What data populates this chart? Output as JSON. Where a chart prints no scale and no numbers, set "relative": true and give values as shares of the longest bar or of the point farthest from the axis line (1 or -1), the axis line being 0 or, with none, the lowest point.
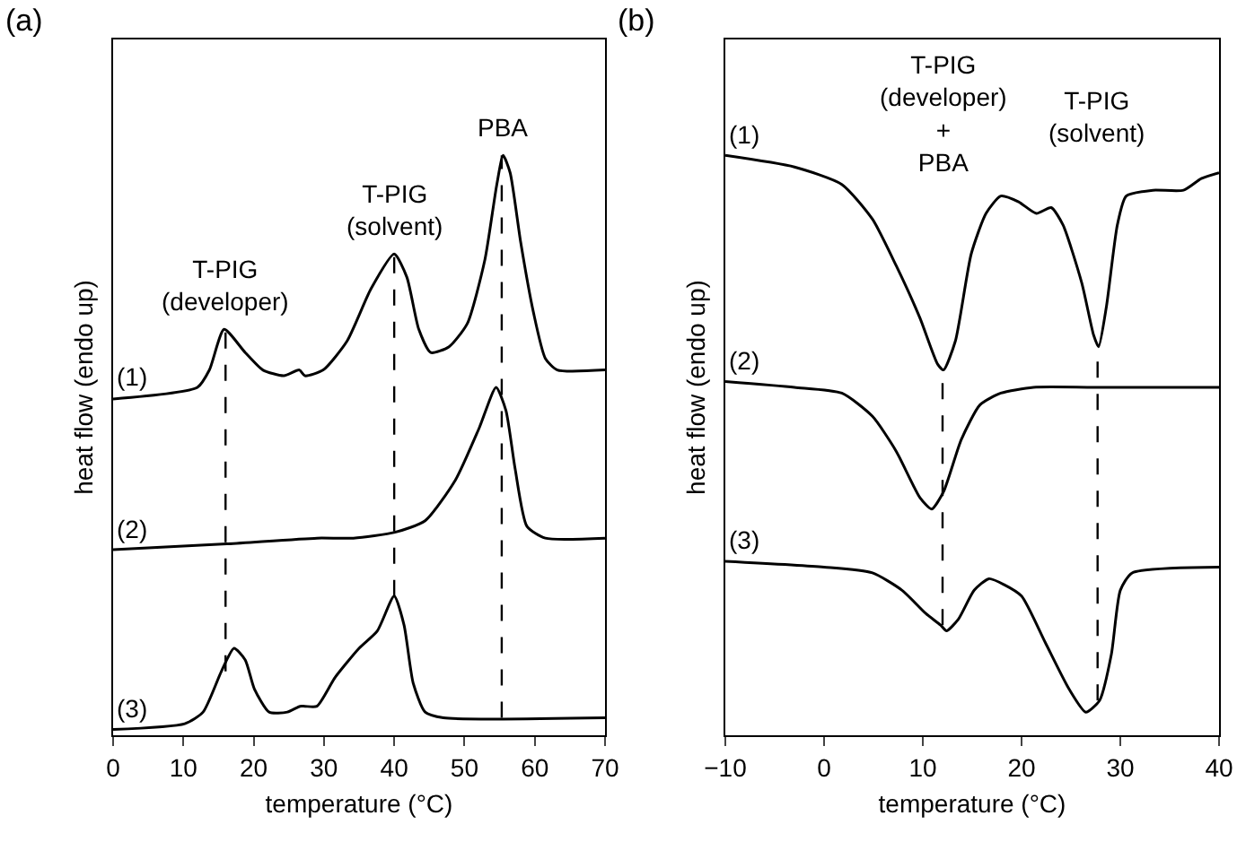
{
  "chart_data": [
    {
      "type": "line",
      "title": "(a)",
      "xlabel": "temperature (°C)",
      "ylabel": "heat flow (endo up)",
      "relative": true,
      "xlim": [
        0,
        70
      ],
      "xticks": [
        0,
        10,
        20,
        30,
        40,
        50,
        60,
        70
      ],
      "grid": false,
      "marker": "none",
      "line_style": "solid",
      "tick_labels": "x",
      "series": [
        {
          "name": "(1)",
          "color": "#000000",
          "x": [
            0,
            12,
            13.7,
            15.8,
            18.8,
            21.3,
            24.3,
            26.5,
            27.3,
            29.9,
            33.3,
            36.7,
            40,
            41.8,
            43.5,
            45.2,
            47.8,
            50.4,
            52.9,
            54.6,
            55.5,
            56.5,
            58,
            59.8,
            61.5,
            63.2,
            70
          ],
          "values": [
            0.58,
            0.6,
            0.63,
            0.7,
            0.66,
            0.63,
            0.62,
            0.63,
            0.62,
            0.63,
            0.68,
            0.77,
            0.83,
            0.79,
            0.7,
            0.66,
            0.67,
            0.71,
            0.82,
            0.95,
            1.0,
            0.97,
            0.85,
            0.73,
            0.65,
            0.63,
            0.63
          ]
        },
        {
          "name": "(2)",
          "color": "#000000",
          "x": [
            0,
            16.2,
            29,
            34.2,
            40.1,
            44.4,
            48.7,
            52.1,
            54.5,
            55.9,
            57.2,
            58.9,
            61.5,
            70
          ],
          "values": [
            0.32,
            0.33,
            0.34,
            0.34,
            0.35,
            0.37,
            0.44,
            0.53,
            0.6,
            0.56,
            0.46,
            0.36,
            0.34,
            0.34
          ]
        },
        {
          "name": "(3)",
          "color": "#000000",
          "x": [
            0,
            10.2,
            12.8,
            15.4,
            17.2,
            18.8,
            20.1,
            22.2,
            24.8,
            26.6,
            27.3,
            29,
            31.6,
            35,
            37.6,
            40,
            41.4,
            42.7,
            44.4,
            47,
            70
          ],
          "values": [
            0.01,
            0.02,
            0.04,
            0.11,
            0.15,
            0.13,
            0.08,
            0.04,
            0.04,
            0.05,
            0.05,
            0.05,
            0.1,
            0.15,
            0.18,
            0.24,
            0.19,
            0.09,
            0.04,
            0.03,
            0.03
          ]
        }
      ],
      "ref_lines": [
        {
          "axis": "x",
          "value": 16,
          "line_style": "dashed"
        },
        {
          "axis": "x",
          "value": 40,
          "line_style": "dashed"
        },
        {
          "axis": "x",
          "value": 55.3,
          "line_style": "dashed"
        }
      ],
      "annotations": [
        {
          "text": "T-PIG\n(developer)",
          "x": 16,
          "y": 0.7
        },
        {
          "text": "T-PIG\n(solvent)",
          "x": 40,
          "y": 0.83
        },
        {
          "text": "PBA",
          "x": 55.5,
          "y": 1.0
        }
      ]
    },
    {
      "type": "line",
      "title": "(b)",
      "xlabel": "temperature (°C)",
      "ylabel": "heat flow (endo up)",
      "relative": true,
      "xlim": [
        -10,
        40
      ],
      "xticks": [
        -10,
        0,
        10,
        20,
        30,
        40
      ],
      "grid": false,
      "marker": "none",
      "line_style": "solid",
      "tick_labels": "x",
      "series": [
        {
          "name": "(1)",
          "color": "#000000",
          "x": [
            -10,
            -3,
            1.8,
            4.9,
            7.3,
            9.7,
            11.5,
            12.1,
            13.3,
            14.9,
            16.4,
            17.9,
            19.7,
            21.5,
            23,
            24.2,
            26.1,
            27.3,
            27.8,
            28.6,
            29.7,
            30.6,
            33.3,
            36.4,
            38.2,
            40
          ],
          "values": [
            1.0,
            0.98,
            0.95,
            0.89,
            0.81,
            0.72,
            0.64,
            0.63,
            0.68,
            0.83,
            0.9,
            0.93,
            0.92,
            0.9,
            0.91,
            0.88,
            0.78,
            0.69,
            0.67,
            0.74,
            0.88,
            0.93,
            0.94,
            0.94,
            0.96,
            0.97
          ]
        },
        {
          "name": "(2)",
          "color": "#000000",
          "x": [
            -10,
            -3,
            1.8,
            4.9,
            7.3,
            9.7,
            10.9,
            12.1,
            13.9,
            15.8,
            17.9,
            21.2,
            27.3,
            40
          ],
          "values": [
            0.61,
            0.6,
            0.59,
            0.55,
            0.49,
            0.41,
            0.39,
            0.42,
            0.51,
            0.57,
            0.59,
            0.6,
            0.6,
            0.6
          ]
        },
        {
          "name": "(3)",
          "color": "#000000",
          "x": [
            -10,
            0,
            4.9,
            7.9,
            10.3,
            11.8,
            12.4,
            13.6,
            15.2,
            16.7,
            18.2,
            20,
            22.4,
            24.8,
            26.5,
            27.9,
            29.1,
            30,
            31.2,
            40
          ],
          "values": [
            0.3,
            0.29,
            0.28,
            0.25,
            0.21,
            0.19,
            0.18,
            0.2,
            0.25,
            0.27,
            0.26,
            0.24,
            0.16,
            0.08,
            0.04,
            0.06,
            0.14,
            0.25,
            0.28,
            0.29
          ]
        }
      ],
      "ref_lines": [
        {
          "axis": "x",
          "value": 12,
          "line_style": "dashed"
        },
        {
          "axis": "x",
          "value": 27.7,
          "line_style": "dashed"
        }
      ],
      "annotations": [
        "T-PIG\n(developer)\n+\nPBA",
        "T-PIG\n(solvent)"
      ]
    }
  ]
}
